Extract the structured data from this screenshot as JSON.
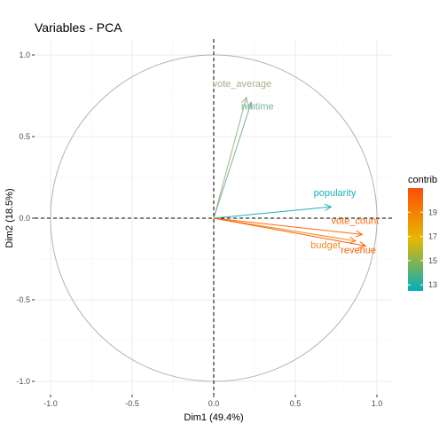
{
  "chart_data": {
    "type": "scatter",
    "subtype": "pca-variable-correlation-circle",
    "title": "Variables - PCA",
    "xlabel": "Dim1 (49.4%)",
    "ylabel": "Dim2 (18.5%)",
    "xlim": [
      -1.0,
      1.0
    ],
    "ylim": [
      -1.0,
      1.0
    ],
    "x_ticks": [
      -1.0,
      -0.5,
      0.0,
      0.5,
      1.0
    ],
    "y_ticks": [
      -1.0,
      -0.5,
      0.0,
      0.5,
      1.0
    ],
    "x_tick_labels": [
      "-1.0",
      "-0.5",
      "0.0",
      "0.5",
      "1.0"
    ],
    "y_tick_labels": [
      "-1.0",
      "-0.5",
      "0.0",
      "0.5",
      "1.0"
    ],
    "grid": true,
    "unit_circle": true,
    "variables": [
      {
        "name": "vote_average",
        "x": 0.2,
        "y": 0.74,
        "contrib": 14.3,
        "color": "#a3b38a"
      },
      {
        "name": "runtime",
        "x": 0.23,
        "y": 0.71,
        "contrib": 13.8,
        "color": "#7cb39c"
      },
      {
        "name": "popularity",
        "x": 0.72,
        "y": 0.07,
        "contrib": 13.0,
        "color": "#1fb1b5"
      },
      {
        "name": "vote_count",
        "x": 0.91,
        "y": -0.1,
        "contrib": 20.6,
        "color": "#ff6a10"
      },
      {
        "name": "budget",
        "x": 0.87,
        "y": -0.14,
        "contrib": 19.3,
        "color": "#f08a14"
      },
      {
        "name": "revenue",
        "x": 0.93,
        "y": -0.17,
        "contrib": 21.0,
        "color": "#ff5a00"
      }
    ],
    "legend": {
      "title": "contrib",
      "position": "right",
      "range": [
        12.5,
        21.0
      ],
      "ticks": [
        13,
        15,
        17,
        19
      ],
      "gradient_colors": [
        "#00afbb",
        "#e7b800",
        "#fc4e07"
      ]
    }
  }
}
